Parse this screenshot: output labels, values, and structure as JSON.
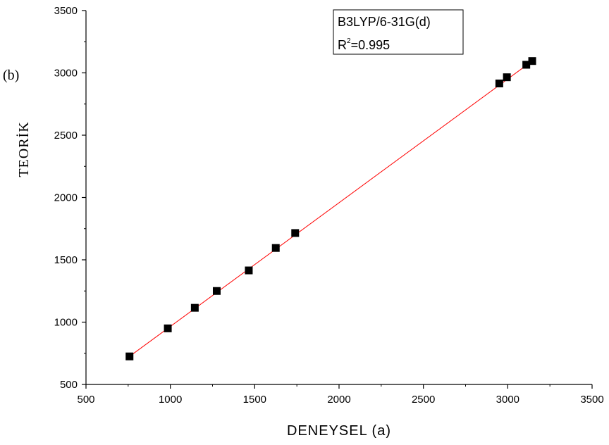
{
  "chart_data": {
    "type": "scatter",
    "panel_label": "(b)",
    "xlabel": "DENEYSEL (a)",
    "ylabel": "TEORİK",
    "xlim": [
      500,
      3500
    ],
    "ylim": [
      500,
      3500
    ],
    "x_ticks": [
      500,
      1000,
      1500,
      2000,
      2500,
      3000,
      3500
    ],
    "y_ticks": [
      500,
      1000,
      1500,
      2000,
      2500,
      3000,
      3500
    ],
    "legend": {
      "method": "B3LYP/6-31G(d)",
      "r2_prefix": "R",
      "r2_sup": "2",
      "r2_value": "=0.995"
    },
    "series": [
      {
        "x": [
          758,
          985,
          1145,
          1275,
          1465,
          1625,
          1740,
          2950,
          2995,
          3110,
          3145
        ],
        "y": [
          725,
          950,
          1115,
          1250,
          1415,
          1595,
          1715,
          2915,
          2965,
          3065,
          3095
        ]
      }
    ],
    "fit_line": {
      "x": [
        758,
        3145
      ],
      "y": [
        725,
        3095
      ]
    },
    "colors": {
      "marker": "#000000",
      "fit_line": "#ff0000",
      "axes": "#000000"
    }
  }
}
